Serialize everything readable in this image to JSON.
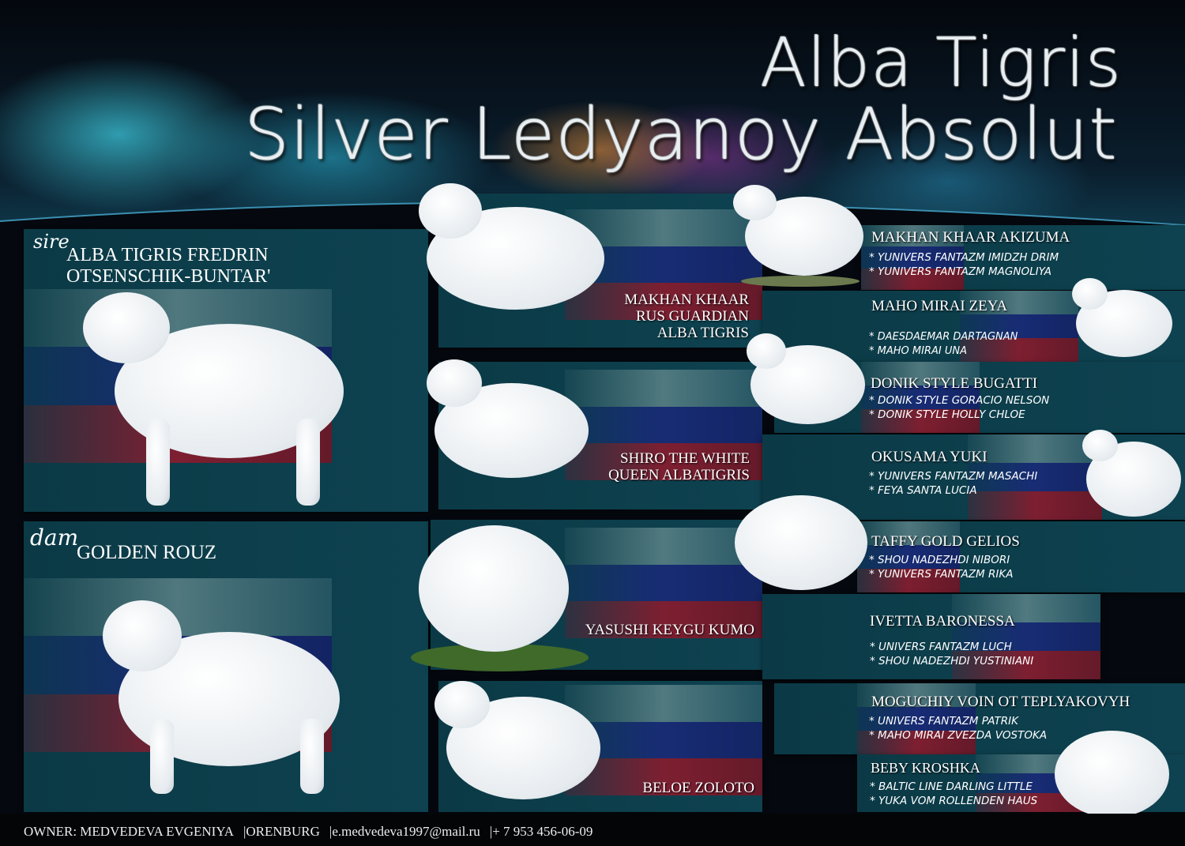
{
  "title": {
    "line1": "Alba Tigris",
    "line2": "Silver Ledyanoy Absolut"
  },
  "sire": {
    "label": "sire",
    "name_line1": "ALBA TIGRIS FREDRIN",
    "name_line2": "OTSENSCHIK-BUNTAR'"
  },
  "dam": {
    "label": "dam",
    "name": "GOLDEN ROUZ"
  },
  "grandparents": [
    {
      "lines": [
        "MAKHAN KHAAR",
        "RUS GUARDIAN",
        "ALBA TIGRIS"
      ]
    },
    {
      "lines": [
        "SHIRO THE WHITE",
        "QUEEN ALBATIGRIS"
      ]
    },
    {
      "lines": [
        "YASUSHI KEYGU KUMO"
      ]
    },
    {
      "lines": [
        "BELOE ZOLOTO"
      ]
    }
  ],
  "great_grandparents": [
    {
      "name": "MAKHAN KHAAR AKIZUMA",
      "parents": [
        "YUNIVERS FANTAZM IMIDZH DRIM",
        "YUNIVERS FANTAZM MAGNOLIYA"
      ]
    },
    {
      "name": "MAHO MIRAI ZEYA",
      "parents": [
        "DAESDAEMAR DARTAGNAN",
        "MAHO MIRAI UNA"
      ]
    },
    {
      "name": "DONIK STYLE BUGATTI",
      "parents": [
        "DONIK STYLE GORACIO NELSON",
        "DONIK STYLE HOLLY CHLOE"
      ]
    },
    {
      "name": "OKUSAMA YUKI",
      "parents": [
        "YUNIVERS FANTAZM MASACHI",
        "FEYA SANTA LUCIA"
      ]
    },
    {
      "name": "TAFFY GOLD GELIOS",
      "parents": [
        "SHOU NADEZHDI NIBORI",
        "YUNIVERS FANTAZM RIKA"
      ]
    },
    {
      "name": "IVETTA BARONESSA",
      "parents": [
        "UNIVERS FANTAZM LUCH",
        "SHOU NADEZHDI YUSTINIANI"
      ]
    },
    {
      "name": "MOGUCHIY VOIN OT TEPLYAKOVYH",
      "parents": [
        "UNIVERS FANTAZM PATRIK",
        "MAHO MIRAI ZVEZDA VOSTOKA"
      ]
    },
    {
      "name": "BEBY KROSHKA",
      "parents": [
        "BALTIC LINE DARLING LITTLE",
        "YUKA VOM ROLLENDEN HAUS"
      ]
    }
  ],
  "footer": {
    "owner": "OWNER: MEDVEDEVA EVGENIYA",
    "city": "ORENBURG",
    "email": "e.medvedeva1997@mail.ru",
    "phone": "+ 7 953 456-06-09",
    "separator": "|"
  },
  "colors": {
    "panel": "#0b3a46",
    "flag_white": "#9ab4b4",
    "flag_blue": "#1a2a7a",
    "flag_red": "#8a1c2e"
  }
}
